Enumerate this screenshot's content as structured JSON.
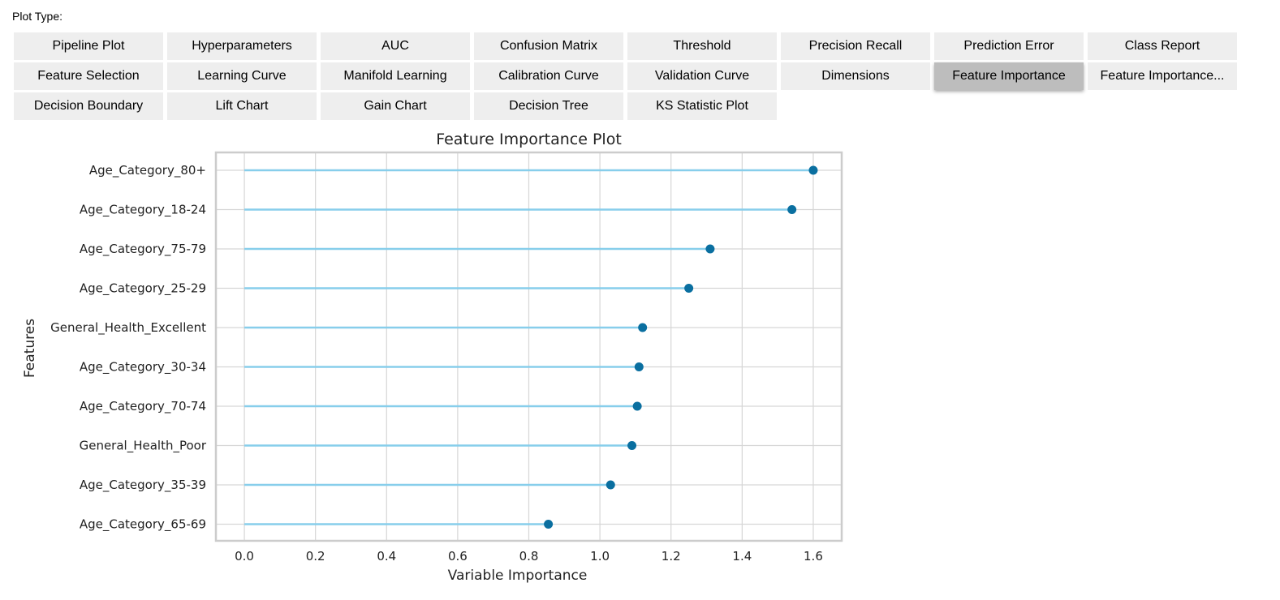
{
  "plot_type": {
    "label": "Plot Type:",
    "selected": "Feature Importance",
    "buttons": [
      "Pipeline Plot",
      "Hyperparameters",
      "AUC",
      "Confusion Matrix",
      "Threshold",
      "Precision Recall",
      "Prediction Error",
      "Class Report",
      "Feature Selection",
      "Learning Curve",
      "Manifold Learning",
      "Calibration Curve",
      "Validation Curve",
      "Dimensions",
      "Feature Importance",
      "Feature Importance...",
      "Decision Boundary",
      "Lift Chart",
      "Gain Chart",
      "Decision Tree",
      "KS Statistic Plot"
    ]
  },
  "chart_data": {
    "type": "lollipop",
    "title": "Feature Importance Plot",
    "xlabel": "Variable Importance",
    "ylabel": "Features",
    "xlim": [
      -0.08,
      1.68
    ],
    "xticks": [
      0.0,
      0.2,
      0.4,
      0.6,
      0.8,
      1.0,
      1.2,
      1.4,
      1.6
    ],
    "xtick_labels": [
      "0.0",
      "0.2",
      "0.4",
      "0.6",
      "0.8",
      "1.0",
      "1.2",
      "1.4",
      "1.6"
    ],
    "grid": true,
    "line_color": "#87ceeb",
    "marker_color": "#0a6fa0",
    "categories": [
      "Age_Category_80+",
      "Age_Category_18-24",
      "Age_Category_75-79",
      "Age_Category_25-29",
      "General_Health_Excellent",
      "Age_Category_30-34",
      "Age_Category_70-74",
      "General_Health_Poor",
      "Age_Category_35-39",
      "Age_Category_65-69"
    ],
    "values": [
      1.6,
      1.54,
      1.31,
      1.25,
      1.12,
      1.11,
      1.105,
      1.09,
      1.03,
      0.855
    ]
  }
}
